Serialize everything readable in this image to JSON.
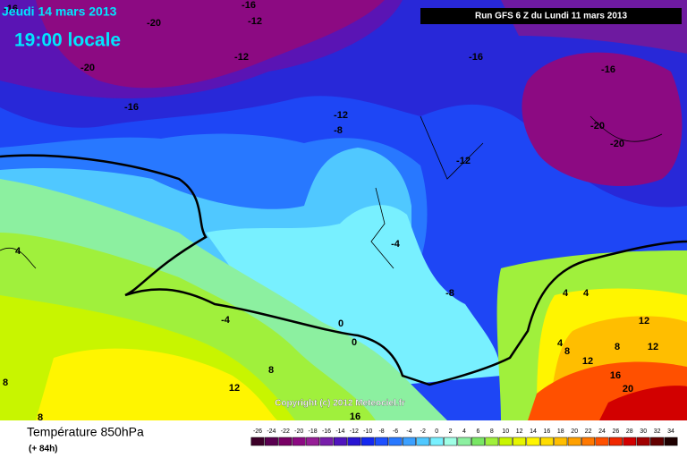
{
  "header": {
    "date": "Jeudi 14 mars 2013",
    "time": "19:00 locale",
    "run": "Run GFS 6 Z du Lundi 11 mars 2013"
  },
  "copyright": "Copyright (c) 2012 Meteociel.fr",
  "footer": {
    "title": "Température 850hPa",
    "lead": "(+ 84h)"
  },
  "colorbar": {
    "labels": [
      -26,
      -24,
      -22,
      -20,
      -18,
      -16,
      -14,
      -12,
      -10,
      -8,
      -6,
      -4,
      -2,
      0,
      2,
      4,
      6,
      8,
      10,
      12,
      14,
      16,
      18,
      20,
      22,
      24,
      26,
      28,
      30,
      32,
      34
    ],
    "colors": [
      "#3c0028",
      "#5a0050",
      "#780064",
      "#8c0a82",
      "#961e96",
      "#781eaa",
      "#5014be",
      "#2814d2",
      "#1428f0",
      "#1e50ff",
      "#2878ff",
      "#3ca0ff",
      "#50c8ff",
      "#78f0ff",
      "#a0ffe6",
      "#8cf0a0",
      "#78e664",
      "#a0f03c",
      "#c8f500",
      "#e6f500",
      "#fff500",
      "#ffdc00",
      "#ffbe00",
      "#ffa000",
      "#ff7800",
      "#ff5000",
      "#f02800",
      "#d20000",
      "#a00000",
      "#640000",
      "#1e0000"
    ]
  },
  "map_labels": [
    -16,
    -20,
    -16,
    -12,
    -20,
    -12,
    -16,
    -12,
    -8,
    -16,
    -16,
    -20,
    -20,
    -12,
    -4,
    -8,
    -4,
    0,
    0,
    4,
    4,
    12,
    12,
    4,
    8,
    8,
    12,
    16,
    20,
    12,
    8,
    8,
    8,
    16,
    4
  ]
}
